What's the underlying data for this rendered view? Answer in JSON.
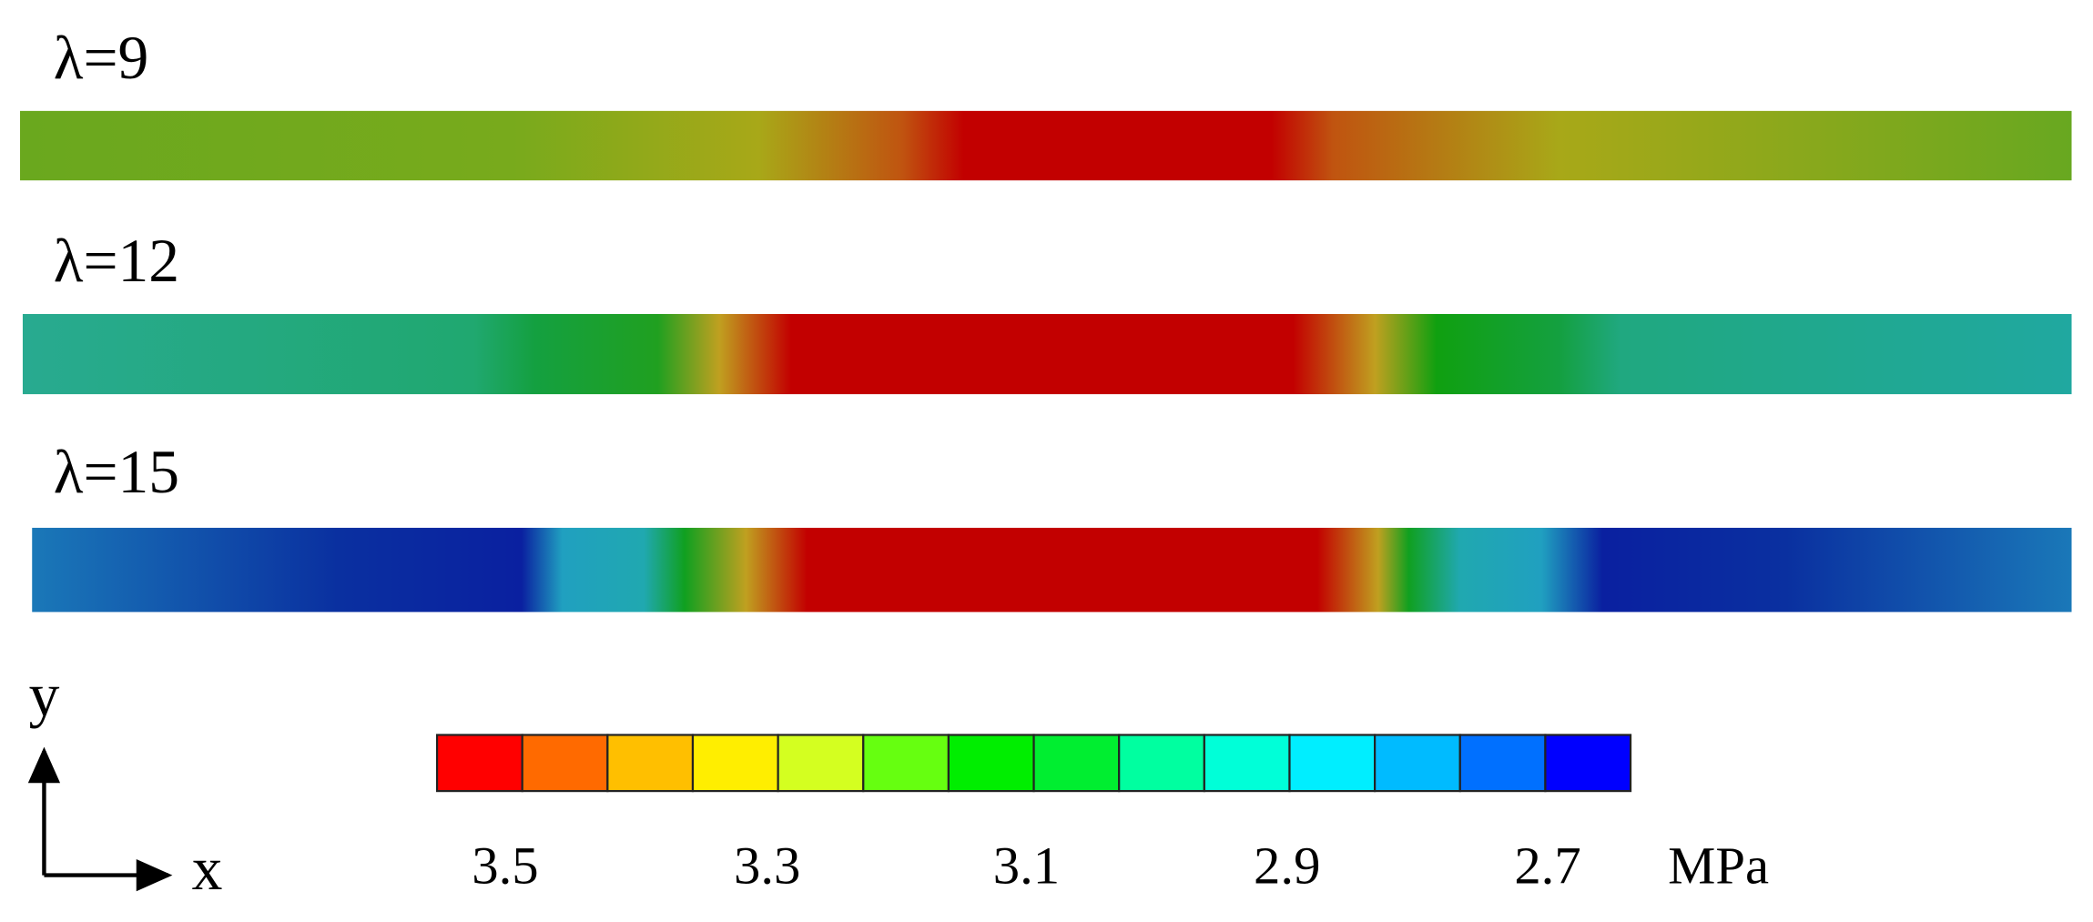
{
  "panels": [
    {
      "label": "λ=9"
    },
    {
      "label": "λ=12"
    },
    {
      "label": "λ=15"
    }
  ],
  "legend": {
    "ticks": [
      "3.5",
      "3.3",
      "3.1",
      "2.9",
      "2.7"
    ],
    "unit": "MPa"
  },
  "axes": {
    "y": "y",
    "x": "x"
  }
}
